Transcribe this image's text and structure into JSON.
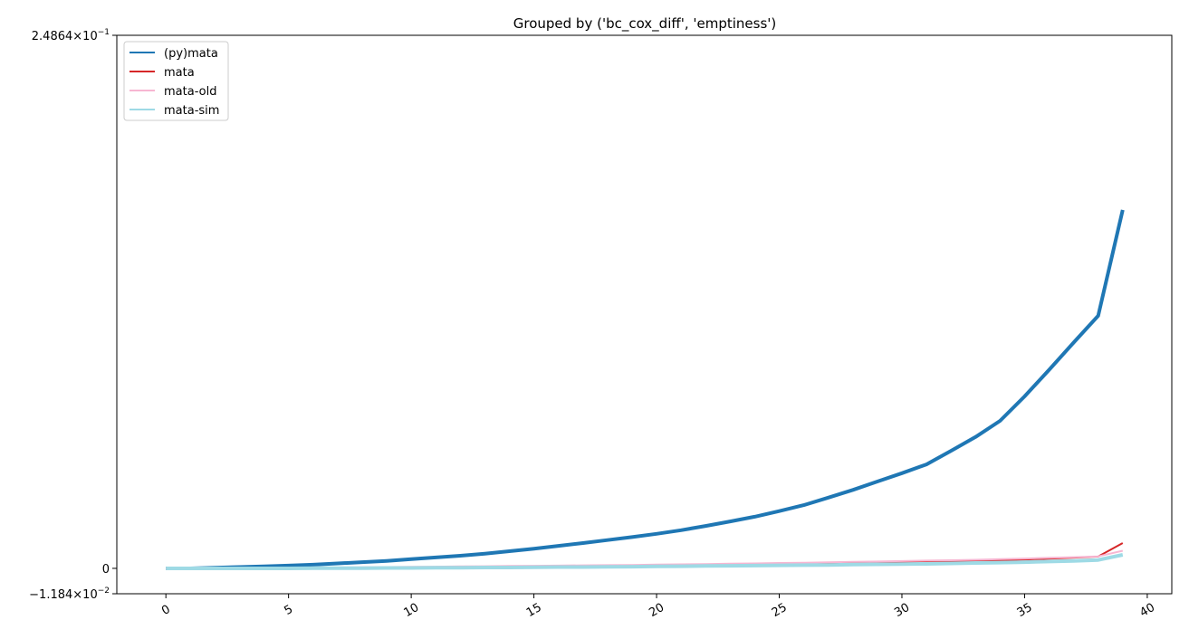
{
  "chart_data": {
    "type": "line",
    "title": "Grouped by ('bc_cox_diff', 'emptiness')",
    "xlabel": "",
    "ylabel": "",
    "xlim": [
      -2,
      41
    ],
    "ylim": [
      -0.01184,
      0.24864
    ],
    "xticks": [
      0,
      5,
      10,
      15,
      20,
      25,
      30,
      35,
      40
    ],
    "xtick_labels": [
      "0",
      "5",
      "10",
      "15",
      "20",
      "25",
      "30",
      "35",
      "40"
    ],
    "yticks": [
      {
        "value": 0.24864,
        "mantissa": "2.4864",
        "times": "×",
        "base": "10",
        "exp": "−1"
      },
      {
        "value": 0,
        "plain": "0"
      },
      {
        "value": -0.01184,
        "mantissa": "−1.184",
        "times": "×",
        "base": "10",
        "exp": "−2"
      }
    ],
    "legend_position": "upper-left",
    "x": [
      0,
      1,
      2,
      3,
      4,
      5,
      6,
      7,
      8,
      9,
      10,
      11,
      12,
      13,
      14,
      15,
      16,
      17,
      18,
      19,
      20,
      21,
      22,
      23,
      24,
      25,
      26,
      27,
      28,
      29,
      30,
      31,
      32,
      33,
      34,
      35,
      36,
      37,
      38,
      39
    ],
    "series": [
      {
        "name": "(py)mata",
        "color": "#1f77b4",
        "values": [
          0,
          0,
          0.0003,
          0.0006,
          0.0009,
          0.0013,
          0.0017,
          0.0023,
          0.0029,
          0.0035,
          0.0043,
          0.0051,
          0.0059,
          0.0068,
          0.008,
          0.0092,
          0.0105,
          0.0118,
          0.0132,
          0.0146,
          0.0161,
          0.0178,
          0.0198,
          0.0219,
          0.0241,
          0.0267,
          0.0295,
          0.033,
          0.0366,
          0.0405,
          0.0444,
          0.0485,
          0.0548,
          0.0613,
          0.0688,
          0.0802,
          0.0926,
          0.1053,
          0.1178,
          0.1672
        ]
      },
      {
        "name": "mata",
        "color": "#d62728",
        "values": [
          0,
          0,
          0,
          0,
          0.0001,
          0.0001,
          0.0001,
          0.0002,
          0.0002,
          0.0003,
          0.0003,
          0.0004,
          0.0005,
          0.0006,
          0.0006,
          0.0007,
          0.0008,
          0.0009,
          0.001,
          0.0011,
          0.0012,
          0.0013,
          0.0015,
          0.0016,
          0.0018,
          0.0019,
          0.0021,
          0.0022,
          0.0024,
          0.0026,
          0.0028,
          0.003,
          0.0032,
          0.0035,
          0.0038,
          0.0041,
          0.0045,
          0.005,
          0.0055,
          0.0118
        ]
      },
      {
        "name": "mata-old",
        "color": "#f7b6d2",
        "values": [
          0,
          0,
          0.0001,
          0.0001,
          0.0002,
          0.0002,
          0.0003,
          0.0004,
          0.0005,
          0.0006,
          0.0007,
          0.0008,
          0.0009,
          0.001,
          0.0011,
          0.0012,
          0.0013,
          0.0014,
          0.0015,
          0.0016,
          0.0018,
          0.0019,
          0.002,
          0.0022,
          0.0023,
          0.0025,
          0.0026,
          0.0028,
          0.003,
          0.0032,
          0.0034,
          0.0036,
          0.0038,
          0.004,
          0.0043,
          0.0046,
          0.0049,
          0.0052,
          0.0056,
          0.0082
        ]
      },
      {
        "name": "mata-sim",
        "color": "#9edae5",
        "values": [
          0,
          0,
          0,
          0,
          0,
          0,
          0.0001,
          0.0001,
          0.0001,
          0.0002,
          0.0002,
          0.0003,
          0.0003,
          0.0004,
          0.0004,
          0.0005,
          0.0006,
          0.0006,
          0.0007,
          0.0008,
          0.0009,
          0.001,
          0.0011,
          0.0012,
          0.0013,
          0.0014,
          0.0015,
          0.0016,
          0.0018,
          0.0019,
          0.002,
          0.0021,
          0.0023,
          0.0025,
          0.0027,
          0.0029,
          0.0032,
          0.0035,
          0.0039,
          0.0063
        ]
      }
    ]
  }
}
